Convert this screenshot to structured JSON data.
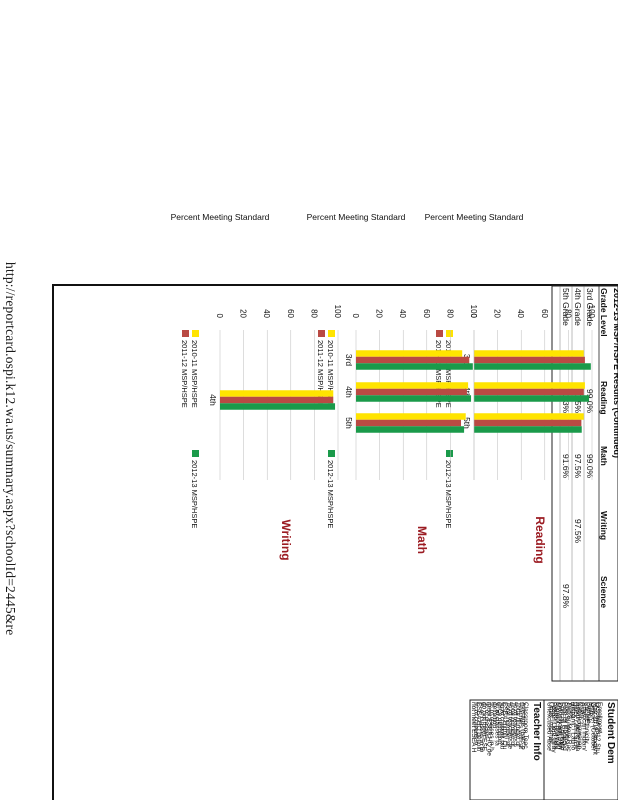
{
  "url_text": "http://reportcard.ospi.k12.wa.us/summary.aspx?schoolId=2445&re",
  "results_table": {
    "title": "2012-13 MSP/HSPE Results (Continued)",
    "headers": [
      "Grade Level",
      "Reading",
      "Math",
      "Writing",
      "Science"
    ],
    "rows": [
      [
        "3rd Grade",
        "99.0%",
        "99.0%",
        "",
        ""
      ],
      [
        "4th Grade",
        "97.5%",
        "97.5%",
        "97.5%",
        ""
      ],
      [
        "5th Grade",
        "91.3%",
        "91.6%",
        "",
        "97.8%"
      ]
    ]
  },
  "charts_common": {
    "ylabel": "Percent Meeting Standard",
    "yticks": [
      "0",
      "20",
      "40",
      "60",
      "80",
      "100"
    ],
    "legend": [
      "2010-11 MSP/HSPE",
      "2011-12 MSP/HSPE",
      "2012-13 MSP/HSPE"
    ]
  },
  "chart_data": [
    {
      "type": "bar",
      "title": "Reading",
      "categories": [
        "3rd",
        "4th",
        "5th"
      ],
      "series": [
        {
          "name": "2010-11 MSP/HSPE",
          "values": [
            93,
            94,
            93
          ]
        },
        {
          "name": "2011-12 MSP/HSPE",
          "values": [
            94,
            93,
            91
          ]
        },
        {
          "name": "2012-13 MSP/HSPE",
          "values": [
            99,
            97.5,
            91.3
          ]
        }
      ],
      "ylim": [
        0,
        100
      ]
    },
    {
      "type": "bar",
      "title": "Math",
      "categories": [
        "3rd",
        "4th",
        "5th"
      ],
      "series": [
        {
          "name": "2010-11 MSP/HSPE",
          "values": [
            90,
            95,
            93
          ]
        },
        {
          "name": "2011-12 MSP/HSPE",
          "values": [
            96,
            94,
            89
          ]
        },
        {
          "name": "2012-13 MSP/HSPE",
          "values": [
            99,
            97.5,
            91.6
          ]
        }
      ],
      "ylim": [
        0,
        100
      ]
    },
    {
      "type": "bar",
      "title": "Writing",
      "categories": [
        "4th"
      ],
      "series": [
        {
          "name": "2010-11 MSP/HSPE",
          "values": [
            96
          ]
        },
        {
          "name": "2011-12 MSP/HSPE",
          "values": [
            96
          ]
        },
        {
          "name": "2012-13 MSP/HSPE",
          "values": [
            97.5
          ]
        }
      ],
      "ylim": [
        0,
        100
      ]
    }
  ],
  "colors": {
    "series": [
      "#ffe400",
      "#b94a43",
      "#1a9a4a"
    ],
    "title": "#9b1b22"
  },
  "student_demographics": {
    "title": "Student Dem",
    "lines": [
      "Enrollment",
      "October 2012 Stu",
      "May 2013 Student",
      "Gender (October",
      "Male",
      "Female",
      "Race/Ethnicity",
      "American Indian/",
      "Asian",
      "Native Hawaiian",
      "Asian/Pacific Isla",
      "Black / African A",
      "Hispanic / Latino",
      "White",
      "Two or More Rac",
      "Special Progra",
      "Free or Reduced",
      "Special Educatio",
      "Transitional Bilin",
      "Migrant (May 20",
      "Section 504 (Ma",
      "Foster Care (May",
      "Other Informat",
      "Unexcused Abse"
    ]
  },
  "teacher_info": {
    "title": "Teacher Info",
    "lines": [
      "Classroom Teac",
      "Average Years o",
      "Teachers with at",
      "Total number of",
      "% of teachers t",
      "Total number of",
      "% of teachers te",
      "Total number of",
      "ESEA Highly Qu",
      "% of classes tau",
      "(HQ) definition",
      "% of classes ta",
      "definition",
      "% of classes in h",
      "meet ESEA HQ de",
      "% of classes",
      "do not meet ESE",
      "% of classes in lo",
      "ESEA HQ definiti",
      "% of classes in",
      "not meet ESEA H"
    ]
  }
}
